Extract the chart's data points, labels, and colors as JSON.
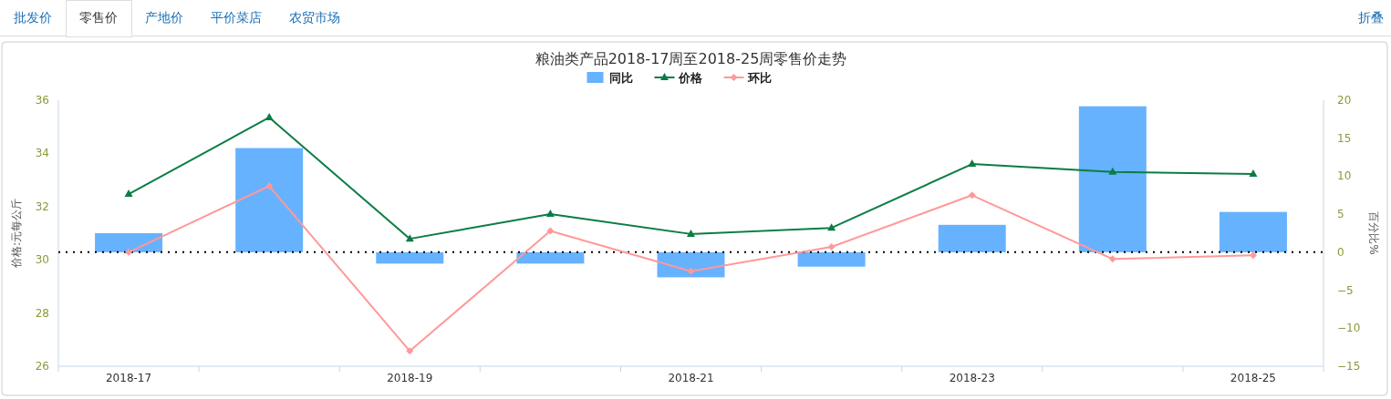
{
  "chart_data": {
    "type": "bar",
    "title": "粮油类产品2018-17周至2018-25周零售价走势",
    "categories": [
      "2018-17",
      null,
      "2018-19",
      null,
      "2018-21",
      null,
      "2018-23",
      null,
      "2018-25"
    ],
    "series": [
      {
        "name": "同比",
        "axis": "y2",
        "color": "#66b2ff",
        "values": [
          2.5,
          13.7,
          -1.5,
          -1.5,
          -3.3,
          -1.9,
          3.6,
          19.2,
          5.3
        ]
      },
      {
        "name": "价格",
        "type": "line",
        "axis": "y",
        "color": "#0a7d44",
        "marker": "triangle",
        "values": [
          32.47,
          35.35,
          30.79,
          31.72,
          30.97,
          31.2,
          33.6,
          33.3,
          33.23
        ]
      },
      {
        "name": "环比",
        "type": "line",
        "axis": "y2",
        "color": "#ff9999",
        "marker": "diamond",
        "values": [
          0,
          8.7,
          -13.0,
          2.8,
          -2.5,
          0.7,
          7.5,
          -0.9,
          -0.4
        ]
      }
    ],
    "ylabel": "价格:元每公斤",
    "y2label": "百分比%",
    "ylim": [
      26,
      36
    ],
    "yticks": [
      26,
      28,
      30,
      32,
      34,
      36
    ],
    "y2lim": [
      -15,
      20
    ],
    "y2ticks": [
      -15,
      -10,
      -5,
      0,
      5,
      10,
      15,
      20
    ],
    "ref_lines": [
      {
        "axis": "y2",
        "value": 0,
        "color": "#000000",
        "line_style": "dotted"
      }
    ],
    "legend": "top",
    "grid": false,
    "annotations": [
      "批发价",
      "零售价",
      "产地价",
      "平价菜店",
      "农贸市场",
      "折叠"
    ]
  }
}
